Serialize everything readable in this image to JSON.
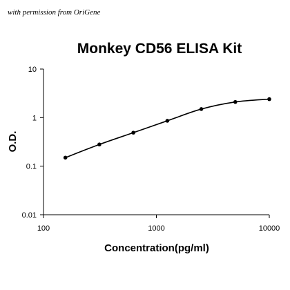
{
  "watermark": "with permission from OriGene",
  "chart_data": {
    "type": "line",
    "title": "Monkey CD56 ELISA Kit",
    "xlabel": "Concentration(pg/ml)",
    "ylabel": "O.D.",
    "xscale": "log",
    "yscale": "log",
    "xlim": [
      100,
      10000
    ],
    "ylim": [
      0.01,
      10
    ],
    "xticks": [
      {
        "value": 100,
        "label": "100"
      },
      {
        "value": 1000,
        "label": "1000"
      },
      {
        "value": 10000,
        "label": "10000"
      }
    ],
    "yticks": [
      {
        "value": 0.01,
        "label": "0.01"
      },
      {
        "value": 0.1,
        "label": "0.1"
      },
      {
        "value": 1,
        "label": "1"
      },
      {
        "value": 10,
        "label": "10"
      }
    ],
    "grid": false,
    "legend": false,
    "series": [
      {
        "x": [
          156.25,
          312.5,
          625,
          1250,
          2500,
          5000,
          10000
        ],
        "y": [
          0.15,
          0.28,
          0.49,
          0.86,
          1.5,
          2.1,
          2.4
        ],
        "color": "#000000"
      }
    ]
  }
}
